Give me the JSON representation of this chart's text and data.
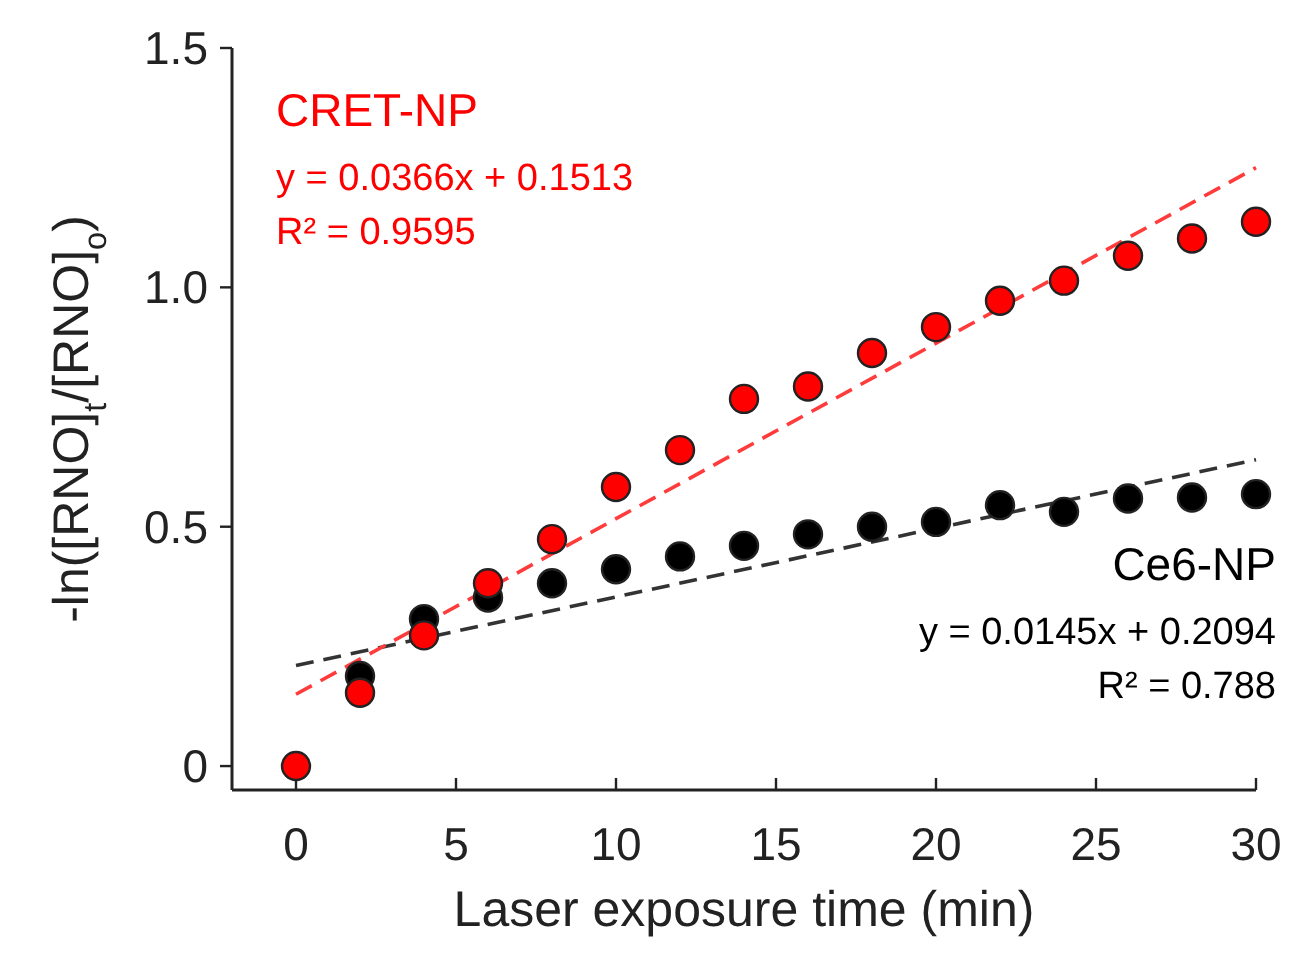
{
  "chart_data": {
    "type": "scatter",
    "xlabel": "Laser exposure time (min)",
    "ylabel": "-ln([RNO]$_{t}$/[RNO]$_{o}$)",
    "x": [
      0,
      2,
      4,
      6,
      8,
      10,
      12,
      14,
      16,
      18,
      20,
      22,
      24,
      26,
      28,
      30
    ],
    "xlim": [
      -2,
      30
    ],
    "xticks": [
      0,
      5,
      10,
      15,
      20,
      25,
      30
    ],
    "ylim": [
      -0.05,
      1.5
    ],
    "yticks": [
      0,
      0.5,
      {
        "value": 1,
        "label": "1.0"
      },
      1.5
    ],
    "grid": false,
    "marker": "circle",
    "series": [
      {
        "name": "CRET-NP",
        "color": "#ff0000",
        "values": [
          0,
          0.153,
          0.273,
          0.382,
          0.474,
          0.583,
          0.66,
          0.767,
          0.793,
          0.863,
          0.917,
          0.972,
          1.014,
          1.066,
          1.102,
          1.137
        ]
      },
      {
        "name": "Ce6-NP",
        "color": "#000000",
        "values": [
          null,
          0.188,
          0.307,
          0.352,
          0.382,
          0.411,
          0.438,
          0.46,
          0.484,
          0.5,
          0.51,
          0.545,
          0.531,
          0.559,
          0.561,
          0.568
        ]
      },
      {
        "type": "line",
        "color": "#ff3b3b",
        "line_style": "dashed",
        "marker": "none",
        "values": [
          0.15,
          null,
          null,
          null,
          null,
          null,
          null,
          null,
          null,
          null,
          null,
          null,
          null,
          null,
          null,
          1.25
        ]
      },
      {
        "type": "line",
        "color": "#333333",
        "line_style": "dashed",
        "marker": "none",
        "values": [
          0.21,
          null,
          null,
          null,
          null,
          null,
          null,
          null,
          null,
          null,
          null,
          null,
          null,
          null,
          null,
          0.64
        ]
      }
    ],
    "annotations": [
      "y = 0.0366x + 0.1513",
      "R² = 0.9595",
      "y = 0.0145x + 0.2094",
      "R² = 0.788"
    ]
  }
}
